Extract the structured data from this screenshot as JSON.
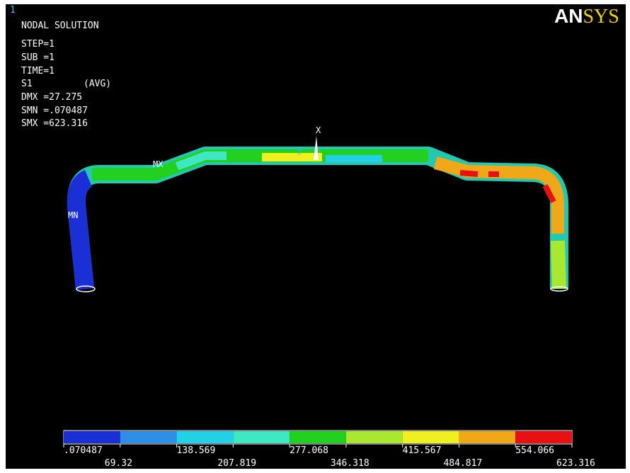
{
  "window_number": "1",
  "info": {
    "title": "NODAL SOLUTION",
    "lines": [
      "STEP=1",
      "SUB =1",
      "TIME=1"
    ],
    "result": "S1",
    "avg": "(AVG)",
    "stats": [
      "DMX =27.275",
      "SMN =.070487",
      "SMX =623.316"
    ]
  },
  "logo": {
    "part1": "AN",
    "part2": "SYS"
  },
  "labels": {
    "max": "MX",
    "min": "MN",
    "axis_x": "X",
    "axis_z": "Z"
  },
  "legend": {
    "colors": [
      "#1b2fd6",
      "#2f8fe6",
      "#22d0e8",
      "#3fe8c0",
      "#22d020",
      "#a8e830",
      "#f0f020",
      "#f0a818",
      "#e81010"
    ],
    "labels": [
      ".070487",
      "69.32",
      "138.569",
      "207.819",
      "277.068",
      "346.318",
      "415.567",
      "484.817",
      "554.066",
      "623.316"
    ]
  }
}
